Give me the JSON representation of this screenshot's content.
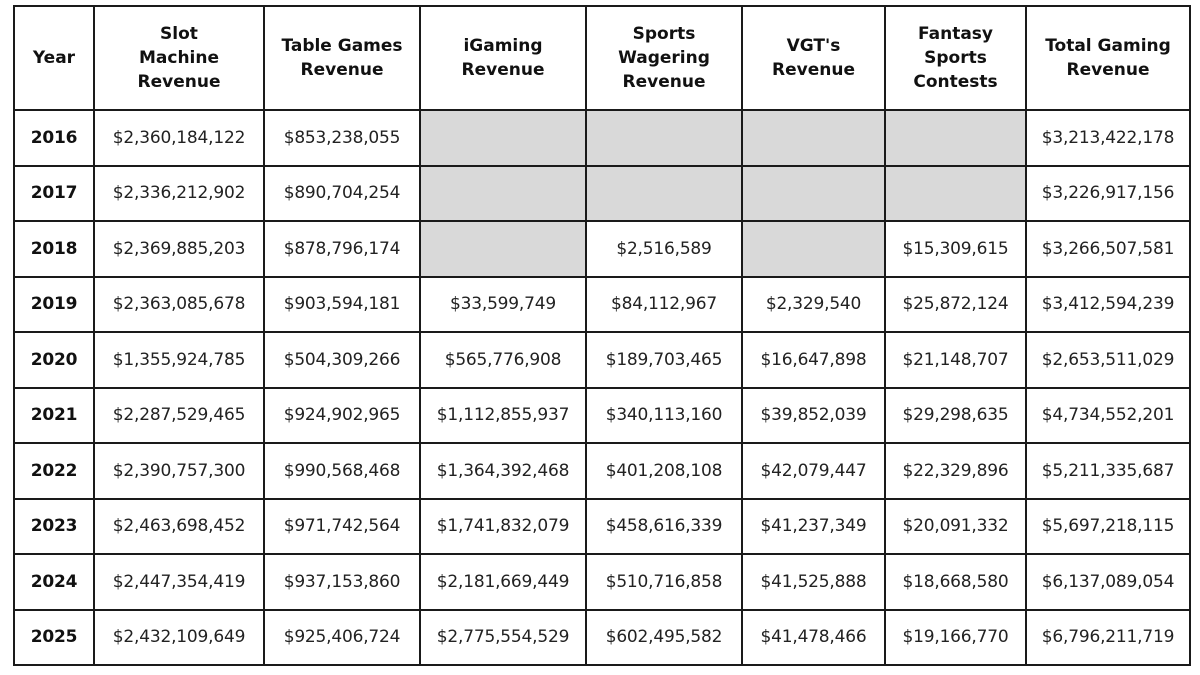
{
  "table": {
    "columns": [
      "Year",
      "Slot Machine Revenue",
      "Table Games Revenue",
      "iGaming Revenue",
      "Sports Wagering Revenue",
      "VGT's Revenue",
      "Fantasy Sports Contests",
      "Total Gaming Revenue"
    ],
    "header_lines": [
      [
        "Year"
      ],
      [
        "Slot",
        "Machine",
        "Revenue"
      ],
      [
        "Table Games",
        "Revenue"
      ],
      [
        "iGaming",
        "Revenue"
      ],
      [
        "Sports",
        "Wagering",
        "Revenue"
      ],
      [
        "VGT's",
        "Revenue"
      ],
      [
        "Fantasy",
        "Sports",
        "Contests"
      ],
      [
        "Total Gaming",
        "Revenue"
      ]
    ],
    "rows": [
      [
        "2016",
        "$2,360,184,122",
        "$853,238,055",
        "",
        "",
        "",
        "",
        "$3,213,422,178"
      ],
      [
        "2017",
        "$2,336,212,902",
        "$890,704,254",
        "",
        "",
        "",
        "",
        "$3,226,917,156"
      ],
      [
        "2018",
        "$2,369,885,203",
        "$878,796,174",
        "",
        "$2,516,589",
        "",
        "$15,309,615",
        "$3,266,507,581"
      ],
      [
        "2019",
        "$2,363,085,678",
        "$903,594,181",
        "$33,599,749",
        "$84,112,967",
        "$2,329,540",
        "$25,872,124",
        "$3,412,594,239"
      ],
      [
        "2020",
        "$1,355,924,785",
        "$504,309,266",
        "$565,776,908",
        "$189,703,465",
        "$16,647,898",
        "$21,148,707",
        "$2,653,511,029"
      ],
      [
        "2021",
        "$2,287,529,465",
        "$924,902,965",
        "$1,112,855,937",
        "$340,113,160",
        "$39,852,039",
        "$29,298,635",
        "$4,734,552,201"
      ],
      [
        "2022",
        "$2,390,757,300",
        "$990,568,468",
        "$1,364,392,468",
        "$401,208,108",
        "$42,079,447",
        "$22,329,896",
        "$5,211,335,687"
      ],
      [
        "2023",
        "$2,463,698,452",
        "$971,742,564",
        "$1,741,832,079",
        "$458,616,339",
        "$41,237,349",
        "$20,091,332",
        "$5,697,218,115"
      ],
      [
        "2024",
        "$2,447,354,419",
        "$937,153,860",
        "$2,181,669,449",
        "$510,716,858",
        "$41,525,888",
        "$18,668,580",
        "$6,137,089,054"
      ],
      [
        "2025",
        "$2,432,109,649",
        "$925,406,724",
        "$2,775,554,529",
        "$602,495,582",
        "$41,478,466",
        "$19,166,770",
        "$6,796,211,719"
      ]
    ]
  },
  "colors": {
    "border": "#1a1a1a",
    "empty_cell": "#d9d9d9",
    "background": "#ffffff"
  }
}
